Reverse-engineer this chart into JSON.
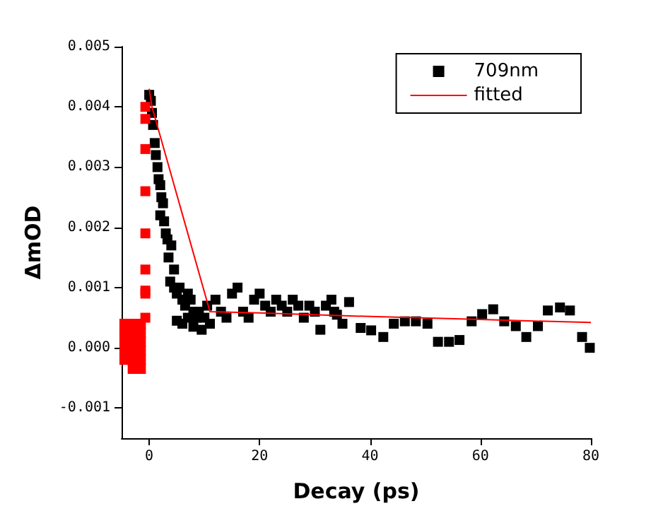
{
  "chart_data": {
    "type": "scatter",
    "xlabel": "Decay (ps)",
    "ylabel": "ΔmOD",
    "xlim": [
      -5,
      80
    ],
    "xticks": [
      0,
      20,
      40,
      60,
      80
    ],
    "ylim": [
      -0.0015,
      0.005
    ],
    "yticks": [
      {
        "value": -0.001,
        "label": "-0.001"
      },
      {
        "value": 0,
        "label": "0.000"
      },
      {
        "value": 0.001,
        "label": "0.001"
      },
      {
        "value": 0.002,
        "label": "0.002"
      },
      {
        "value": 0.003,
        "label": "0.003"
      },
      {
        "value": 0.004,
        "label": "0.004"
      },
      {
        "value": 0.005,
        "label": "0.005"
      }
    ],
    "grid": false,
    "legend": "top right",
    "marker": "square",
    "series": [
      {
        "name": "709nm",
        "type": "scatter",
        "color": "#000000",
        "x": [
          0,
          0.3,
          0.5,
          0.7,
          1,
          1.2,
          1.5,
          1.7,
          2,
          2.2,
          2.5,
          2,
          2.7,
          3,
          3.3,
          4,
          3.5,
          4.5,
          3.8,
          4.5,
          5,
          5.5,
          6,
          6.5,
          7,
          7.5,
          8,
          8.5,
          9.5,
          10,
          10.5,
          11,
          12,
          13,
          14,
          15,
          16,
          17,
          18,
          19,
          20,
          21,
          22,
          23,
          24,
          25,
          26,
          27,
          28,
          29,
          30,
          31,
          32,
          33,
          33.5,
          34,
          35,
          36.2,
          38.3,
          40.2,
          42.4,
          44.3,
          46.3,
          48.3,
          50.4,
          52.3,
          54.3,
          56.2,
          58.4,
          60.3,
          62.3,
          64.3,
          66.4,
          68.3,
          70.4,
          72.2,
          74.4,
          76.2,
          78.4,
          79.8,
          5,
          6,
          7,
          8,
          9
        ],
        "values": [
          0.0042,
          0.0041,
          0.0039,
          0.0037,
          0.0034,
          0.0032,
          0.003,
          0.0028,
          0.0027,
          0.0025,
          0.0024,
          0.0022,
          0.0021,
          0.0019,
          0.0018,
          0.0017,
          0.0015,
          0.0013,
          0.0011,
          0.001,
          0.0009,
          0.001,
          0.0008,
          0.0007,
          0.0009,
          0.0008,
          0.0006,
          0.0005,
          0.0003,
          0.0005,
          0.0007,
          0.0004,
          0.0008,
          0.0006,
          0.0005,
          0.0009,
          0.001,
          0.0006,
          0.0005,
          0.0008,
          0.0009,
          0.0007,
          0.0006,
          0.0008,
          0.0007,
          0.0006,
          0.0008,
          0.0007,
          0.0005,
          0.0007,
          0.0006,
          0.0003,
          0.0007,
          0.0008,
          0.0006,
          0.00055,
          0.0004,
          0.00076,
          0.00033,
          0.00029,
          0.00018,
          0.0004,
          0.00044,
          0.00044,
          0.0004,
          0.0001,
          0.0001,
          0.00013,
          0.00044,
          0.00056,
          0.00064,
          0.00044,
          0.00036,
          0.00018,
          0.00036,
          0.00062,
          0.00067,
          0.00062,
          0.00018,
          0,
          0.00045,
          0.0004,
          0.0005,
          0.00035,
          0.0006
        ]
      },
      {
        "type": "scatter",
        "color": "#ff0000",
        "x": [
          -0.7,
          -0.7,
          -0.7,
          -0.7,
          -0.7,
          -0.7,
          -0.7,
          -0.7,
          -0.7,
          -4.5,
          -3,
          -1.5,
          -4.5,
          -3,
          -1.5,
          -4.5,
          -3,
          -1.5,
          -4.5,
          -3,
          -1.5,
          -4.5,
          -3,
          -1.5,
          -3,
          -1.5
        ],
        "values": [
          0.0005,
          0.0009,
          0.00095,
          0.0013,
          0.0019,
          0.0026,
          0.0033,
          0.0038,
          0.004,
          0.0004,
          0.0004,
          0.0004,
          0.00025,
          0.00025,
          0.00025,
          0.0001,
          0.0001,
          0.0001,
          -5e-05,
          -5e-05,
          -5e-05,
          -0.0002,
          -0.0002,
          -0.0002,
          -0.00035,
          -0.00035
        ]
      },
      {
        "name": "fitted",
        "type": "line",
        "color": "#ff0000",
        "marker": "none",
        "x": [
          0,
          0.5,
          11,
          20,
          40,
          60,
          80
        ],
        "values": [
          0.0043,
          0.004,
          0.0006,
          0.00058,
          0.00052,
          0.00047,
          0.00042
        ]
      }
    ]
  }
}
